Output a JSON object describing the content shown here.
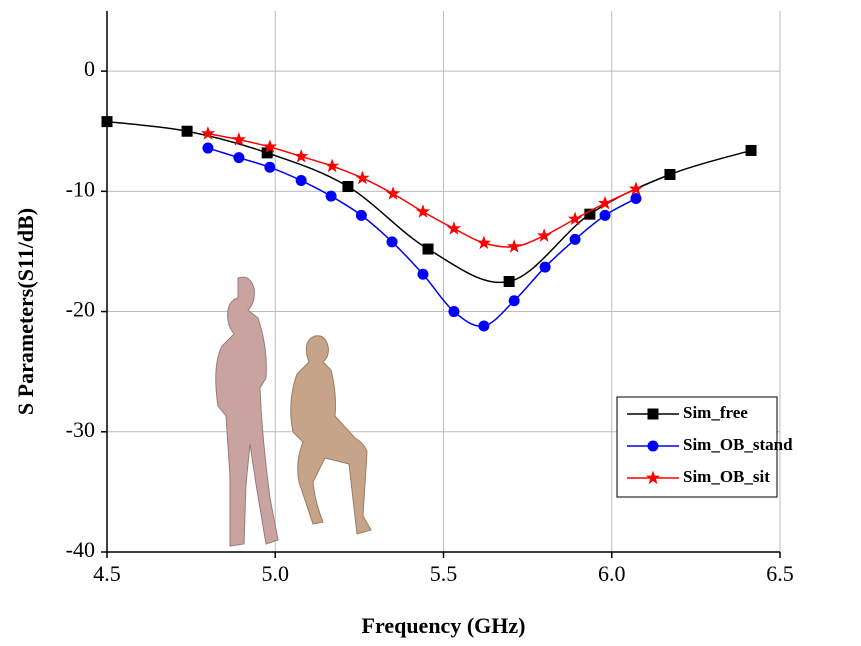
{
  "chart_data": {
    "type": "line",
    "x_label": "Frequency (GHz)",
    "y_label": "S Parameters(S11/dB)",
    "xlim": [
      4.5,
      6.5
    ],
    "ylim": [
      -40,
      5
    ],
    "xticks": [
      {
        "value": 4.5,
        "label": "4.5"
      },
      {
        "value": 5.0,
        "label": "5.0"
      },
      {
        "value": 5.5,
        "label": "5.5"
      },
      {
        "value": 6.0,
        "label": "6.0"
      },
      {
        "value": 6.5,
        "label": "6.5"
      }
    ],
    "yticks": [
      -40,
      -30,
      -20,
      -10,
      0
    ],
    "grid": true,
    "legend": "lower right",
    "series": [
      {
        "name": "Sim_free",
        "color": "#000000",
        "marker": "square",
        "x": [
          4.5,
          4.738,
          4.976,
          5.216,
          5.454,
          5.695,
          5.935,
          6.173,
          6.414
        ],
        "values": [
          -4.2,
          -5.0,
          -6.8,
          -9.6,
          -14.8,
          -17.5,
          -11.9,
          -8.6,
          -6.6
        ]
      },
      {
        "name": "Sim_OB_stand",
        "color": "#0000ff",
        "marker": "circle",
        "x": [
          4.8,
          4.892,
          4.984,
          5.077,
          5.166,
          5.256,
          5.347,
          5.439,
          5.531,
          5.62,
          5.71,
          5.802,
          5.891,
          5.98,
          6.072
        ],
        "values": [
          -6.4,
          -7.2,
          -8.0,
          -9.1,
          -10.4,
          -12.0,
          -14.2,
          -16.9,
          -20.0,
          -21.2,
          -19.1,
          -16.3,
          -14.0,
          -12.0,
          -10.6
        ]
      },
      {
        "name": "Sim_OB_sit",
        "color": "#ff0000",
        "marker": "star",
        "x": [
          4.8,
          4.892,
          4.984,
          5.077,
          5.169,
          5.259,
          5.35,
          5.439,
          5.531,
          5.62,
          5.71,
          5.799,
          5.891,
          5.98,
          6.072
        ],
        "values": [
          -5.2,
          -5.7,
          -6.3,
          -7.1,
          -7.9,
          -8.9,
          -10.2,
          -11.7,
          -13.1,
          -14.3,
          -14.6,
          -13.7,
          -12.3,
          -11.0,
          -9.8
        ]
      }
    ]
  }
}
